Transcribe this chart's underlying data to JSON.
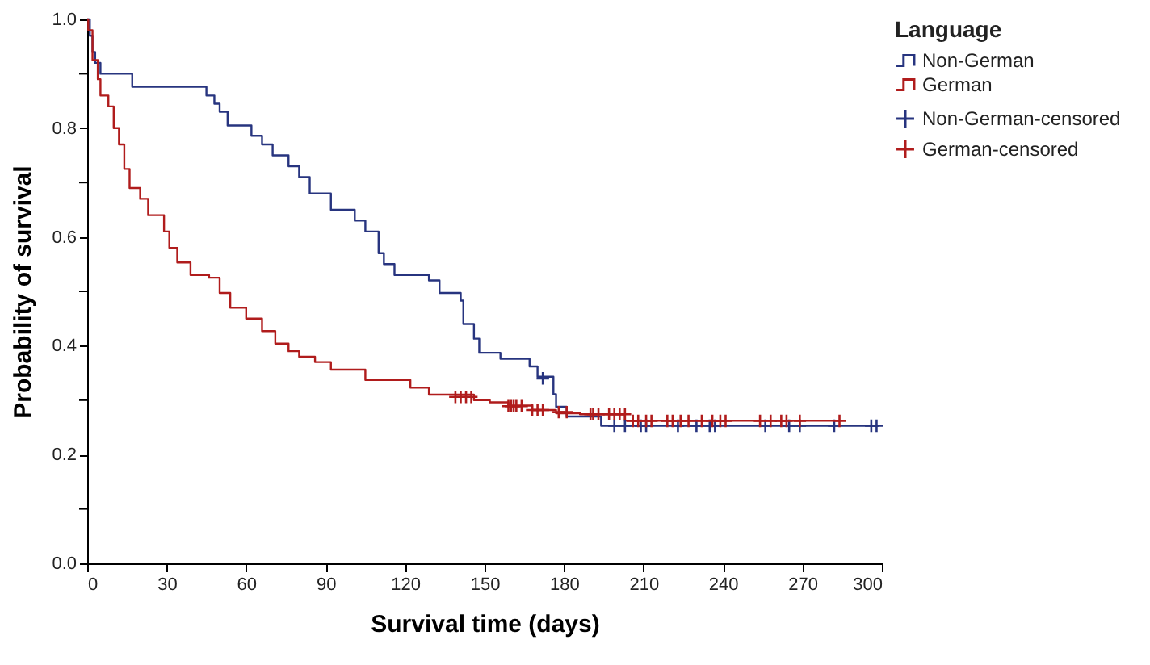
{
  "chart_data": {
    "type": "step",
    "xlabel": "Survival time (days)",
    "ylabel": "Probability of survival",
    "legend_title": "Language",
    "legend": "top right",
    "grid": false,
    "xlim": [
      0,
      300
    ],
    "xticks": [
      0,
      30,
      60,
      90,
      120,
      150,
      180,
      210,
      240,
      270,
      300
    ],
    "ylim": [
      0,
      1
    ],
    "yticks": [
      {
        "value": 0,
        "label": "0.0"
      },
      {
        "value": 0.1,
        "label": null
      },
      {
        "value": 0.2,
        "label": "0.2"
      },
      {
        "value": 0.3,
        "label": null
      },
      {
        "value": 0.4,
        "label": "0.4"
      },
      {
        "value": 0.5,
        "label": null
      },
      {
        "value": 0.6,
        "label": "0.6"
      },
      {
        "value": 0.7,
        "label": null
      },
      {
        "value": 0.8,
        "label": "0.8"
      },
      {
        "value": 0.9,
        "label": null
      },
      {
        "value": 1,
        "label": "1.0"
      }
    ],
    "series": [
      {
        "name": "Non-German",
        "color": "#27347f",
        "x": [
          0,
          1,
          2,
          3,
          5,
          17,
          45,
          48,
          50,
          53,
          62,
          66,
          70,
          76,
          80,
          84,
          92,
          101,
          105,
          110,
          112,
          116,
          129,
          133,
          141,
          142,
          146,
          148,
          156,
          167,
          170,
          176,
          177,
          181,
          194,
          299
        ],
        "values": [
          1.0,
          0.97,
          0.94,
          0.92,
          0.9,
          0.876,
          0.86,
          0.845,
          0.83,
          0.805,
          0.786,
          0.77,
          0.75,
          0.73,
          0.71,
          0.68,
          0.65,
          0.63,
          0.61,
          0.57,
          0.55,
          0.53,
          0.52,
          0.497,
          0.483,
          0.44,
          0.413,
          0.387,
          0.376,
          0.362,
          0.343,
          0.311,
          0.288,
          0.27,
          0.253,
          0.253
        ]
      },
      {
        "name": "German",
        "color": "#b01c1c",
        "x": [
          0,
          0.4,
          2,
          4,
          5,
          8,
          10,
          12,
          14,
          16,
          20,
          23,
          29,
          31,
          34,
          39,
          46,
          50,
          54,
          60,
          66,
          71,
          76,
          80,
          86,
          92,
          105,
          122,
          129,
          146,
          152,
          159,
          168,
          177,
          186,
          203,
          284
        ],
        "values": [
          1.0,
          0.98,
          0.925,
          0.89,
          0.86,
          0.84,
          0.8,
          0.77,
          0.725,
          0.69,
          0.67,
          0.64,
          0.61,
          0.58,
          0.553,
          0.53,
          0.525,
          0.497,
          0.47,
          0.45,
          0.427,
          0.404,
          0.39,
          0.38,
          0.37,
          0.356,
          0.337,
          0.323,
          0.31,
          0.3,
          0.296,
          0.29,
          0.282,
          0.276,
          0.274,
          0.262,
          0.262
        ]
      },
      {
        "name": "Non-German-censored",
        "type": "scatter",
        "marker": "cross",
        "color": "#27347f",
        "x": [
          172,
          199,
          203,
          209,
          211,
          223,
          230,
          235,
          237,
          256,
          265,
          269,
          282,
          296,
          298
        ],
        "values": [
          0.34,
          0.253,
          0.253,
          0.253,
          0.253,
          0.253,
          0.253,
          0.253,
          0.253,
          0.253,
          0.253,
          0.253,
          0.253,
          0.253,
          0.253
        ]
      },
      {
        "name": "German-censored",
        "type": "scatter",
        "marker": "cross",
        "color": "#b01c1c",
        "x": [
          139,
          141,
          143,
          145,
          159,
          160,
          161,
          162,
          164,
          168,
          170,
          172,
          178,
          181,
          190,
          191,
          193,
          197,
          199,
          201,
          203,
          206,
          208,
          211,
          213,
          219,
          221,
          224,
          227,
          232,
          236,
          239,
          241,
          254,
          258,
          262,
          264,
          269,
          284
        ],
        "values": [
          0.306,
          0.306,
          0.306,
          0.306,
          0.289,
          0.289,
          0.289,
          0.289,
          0.289,
          0.282,
          0.282,
          0.282,
          0.278,
          0.278,
          0.274,
          0.274,
          0.274,
          0.274,
          0.274,
          0.274,
          0.274,
          0.262,
          0.262,
          0.262,
          0.262,
          0.262,
          0.262,
          0.262,
          0.262,
          0.262,
          0.262,
          0.262,
          0.262,
          0.262,
          0.262,
          0.262,
          0.262,
          0.262,
          0.262
        ]
      }
    ]
  }
}
